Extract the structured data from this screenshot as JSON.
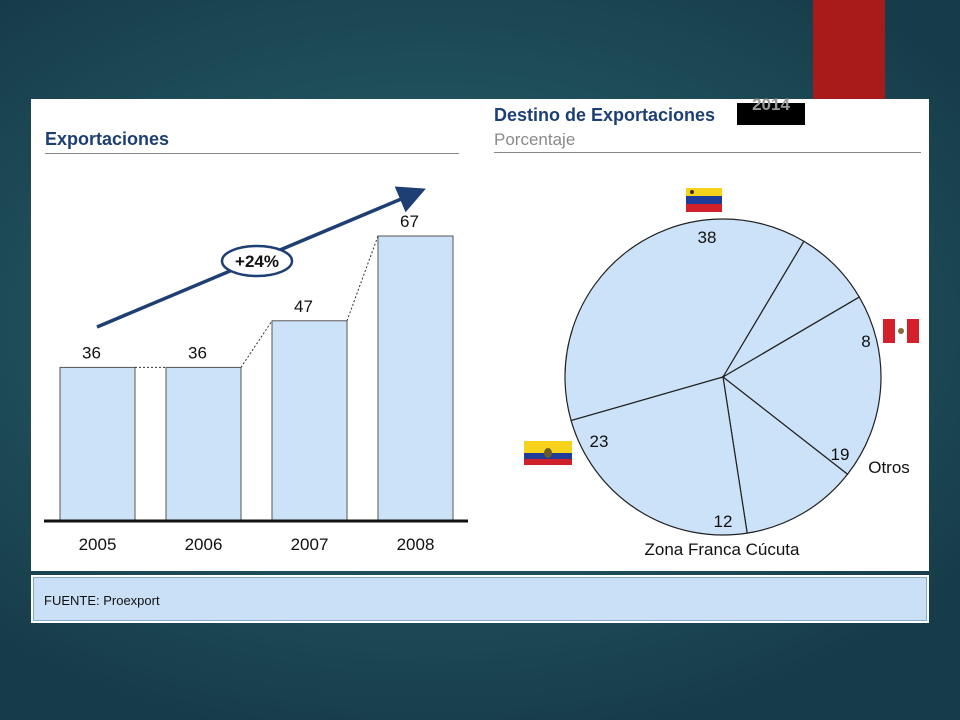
{
  "left_chart": {
    "title": "Exportaciones",
    "growth_label": "+24%"
  },
  "right_chart": {
    "title": "Destino de Exportaciones",
    "year_label": "2014",
    "subtitle": "Porcentaje"
  },
  "footer": {
    "source": "FUENTE: Proexport"
  },
  "colors": {
    "bar_fill": "#cce2f8",
    "title": "#1e3f74",
    "arrow": "#1e3f74",
    "accent_red": "#a91b1b"
  },
  "flags": [
    "venezuela-flag-icon",
    "peru-flag-icon",
    "ecuador-flag-icon"
  ],
  "chart_data": [
    {
      "type": "bar",
      "title": "Exportaciones",
      "categories": [
        "2005",
        "2006",
        "2007",
        "2008"
      ],
      "values": [
        36,
        36,
        47,
        67
      ],
      "ylim": [
        0,
        70
      ],
      "grid": false,
      "annotation": "+24%"
    },
    {
      "type": "pie",
      "title": "Destino de Exportaciones",
      "subtitle": "Porcentaje",
      "slices": [
        {
          "label": "",
          "value": 38
        },
        {
          "label": "",
          "value": 8
        },
        {
          "label": "Otros",
          "value": 19
        },
        {
          "label": "Zona Franca Cúcuta",
          "value": 12
        },
        {
          "label": "",
          "value": 23
        }
      ]
    }
  ]
}
